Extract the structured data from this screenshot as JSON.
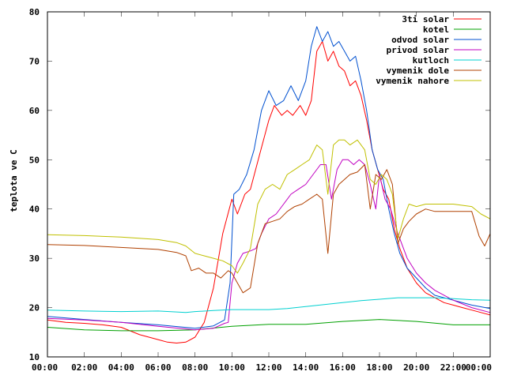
{
  "chart_data": {
    "type": "line",
    "title": "",
    "xlabel": "",
    "ylabel": "teplota ve C",
    "xlim": [
      0,
      24
    ],
    "ylim": [
      10,
      80
    ],
    "grid": false,
    "legend_position": "top-right",
    "x_ticks": [
      "00:00",
      "02:00",
      "04:00",
      "06:00",
      "08:00",
      "10:00",
      "12:00",
      "14:00",
      "16:00",
      "18:00",
      "20:00",
      "22:00",
      "00:00"
    ],
    "y_ticks": [
      "10",
      "20",
      "30",
      "40",
      "50",
      "60",
      "70",
      "80"
    ],
    "series": [
      {
        "name": "3ti solar",
        "color": "#ff0000",
        "x": [
          0,
          1,
          2,
          3,
          4,
          5,
          6,
          6.5,
          7,
          7.5,
          8,
          8.5,
          9,
          9.5,
          10,
          10.3,
          10.7,
          11,
          11.5,
          12,
          12.3,
          12.7,
          13,
          13.3,
          13.7,
          14,
          14.3,
          14.6,
          14.9,
          15.2,
          15.5,
          15.8,
          16.1,
          16.4,
          16.7,
          17,
          17.3,
          17.6,
          17.9,
          18.2,
          18.5,
          18.8,
          19.1,
          19.5,
          20,
          20.5,
          21,
          21.5,
          22,
          22.5,
          23,
          23.5,
          24
        ],
        "values": [
          17.5,
          17,
          16.8,
          16.5,
          16,
          14.5,
          13.5,
          13,
          12.8,
          13,
          14,
          17,
          24,
          35,
          42,
          39,
          43,
          44,
          51,
          58,
          61,
          59,
          60,
          59,
          61,
          59,
          62,
          72,
          74,
          70,
          72,
          69,
          68,
          65,
          66,
          63,
          58,
          52,
          48,
          44,
          42,
          36,
          32,
          28,
          25,
          23,
          22,
          21,
          20.5,
          20,
          19.5,
          19,
          18.5
        ]
      },
      {
        "name": "kotel",
        "color": "#00a000",
        "x": [
          0,
          2,
          4,
          6,
          8,
          10,
          12,
          14,
          16,
          18,
          20,
          22,
          24
        ],
        "values": [
          16,
          15.5,
          15.3,
          15.3,
          15.5,
          16.2,
          16.6,
          16.6,
          17.2,
          17.6,
          17.2,
          16.5,
          16.5
        ]
      },
      {
        "name": "odvod solar",
        "color": "#0050d0",
        "x": [
          0,
          2,
          4,
          6,
          8,
          9,
          9.6,
          9.9,
          10.1,
          10.4,
          10.8,
          11.2,
          11.6,
          12,
          12.4,
          12.8,
          13.2,
          13.6,
          14,
          14.3,
          14.6,
          14.9,
          15.2,
          15.5,
          15.8,
          16.1,
          16.4,
          16.7,
          17,
          17.3,
          17.6,
          17.9,
          18.2,
          18.5,
          18.8,
          19.1,
          19.5,
          20,
          20.5,
          21,
          22,
          23,
          24
        ],
        "values": [
          18.2,
          17.6,
          17,
          16.5,
          15.8,
          16.3,
          17.5,
          25,
          43,
          44,
          47,
          52,
          60,
          64,
          61,
          62,
          65,
          62,
          66,
          73,
          77,
          74,
          76,
          73,
          74,
          72,
          70,
          71,
          66,
          60,
          52,
          48,
          46,
          40,
          35,
          31,
          28,
          26,
          24,
          22.5,
          21.5,
          20.5,
          19.8
        ]
      },
      {
        "name": "privod solar",
        "color": "#c000c0",
        "x": [
          0,
          2,
          4,
          6,
          8,
          9,
          9.6,
          9.8,
          10,
          10.3,
          10.6,
          11,
          11.3,
          11.6,
          12,
          12.4,
          12.8,
          13.2,
          13.6,
          14,
          14.4,
          14.8,
          15.1,
          15.4,
          15.7,
          16,
          16.3,
          16.6,
          16.9,
          17.2,
          17.5,
          17.8,
          18,
          18.3,
          18.6,
          19,
          19.5,
          20,
          20.5,
          21,
          22,
          23,
          24
        ],
        "values": [
          17.8,
          17.5,
          17,
          16.2,
          15.5,
          15.8,
          16.8,
          17,
          25,
          29,
          31,
          31.5,
          32,
          35,
          38,
          39,
          41,
          43,
          44,
          45,
          47,
          49,
          49,
          42,
          48,
          50,
          50,
          49,
          50,
          49,
          45,
          40,
          47,
          42,
          40,
          35,
          30,
          27,
          25,
          23.5,
          21.5,
          20,
          19
        ]
      },
      {
        "name": "kutloch",
        "color": "#00d0d0",
        "x": [
          0,
          2,
          4,
          6,
          7.5,
          8,
          9,
          10,
          11,
          12,
          13,
          14,
          15,
          16,
          17,
          18,
          19,
          20,
          21,
          22,
          23,
          24
        ],
        "values": [
          19.5,
          19.3,
          19.2,
          19.3,
          19,
          19.2,
          19.4,
          19.6,
          19.6,
          19.6,
          19.8,
          20.2,
          20.6,
          21,
          21.4,
          21.7,
          22,
          22,
          22,
          21.8,
          21.6,
          21.5
        ]
      },
      {
        "name": "vymenik dole",
        "color": "#b04000",
        "x": [
          0,
          2,
          4,
          6,
          7,
          7.5,
          7.8,
          8.2,
          8.6,
          9,
          9.4,
          9.8,
          10,
          10.3,
          10.6,
          11,
          11.4,
          11.8,
          12.2,
          12.6,
          13,
          13.4,
          13.8,
          14.2,
          14.6,
          14.9,
          15.2,
          15.5,
          15.8,
          16.1,
          16.4,
          16.8,
          17.2,
          17.5,
          17.8,
          18.1,
          18.4,
          18.7,
          19,
          19.3,
          19.6,
          20,
          20.5,
          21,
          22,
          23,
          23.4,
          23.7,
          24
        ],
        "values": [
          32.8,
          32.6,
          32.2,
          31.8,
          31.2,
          30.5,
          27.5,
          28,
          27,
          27,
          26,
          27.5,
          27,
          25,
          23,
          24,
          33,
          37,
          37.5,
          38,
          39.5,
          40.5,
          41,
          42,
          43,
          42,
          31,
          43,
          45,
          46,
          47,
          47.5,
          49,
          40,
          47,
          46,
          48,
          45,
          33,
          36,
          37.5,
          39,
          40,
          39.5,
          39.5,
          39.5,
          34.5,
          32.5,
          35
        ]
      },
      {
        "name": "vymenik nahore",
        "color": "#c0c000",
        "x": [
          0,
          2,
          4,
          6,
          7,
          7.5,
          8,
          8.5,
          9,
          9.5,
          10,
          10.3,
          10.6,
          11,
          11.4,
          11.8,
          12.2,
          12.6,
          13,
          13.4,
          13.8,
          14.2,
          14.6,
          14.9,
          15.2,
          15.5,
          15.8,
          16.1,
          16.4,
          16.8,
          17.2,
          17.5,
          17.8,
          18.1,
          18.4,
          18.7,
          19,
          19.3,
          19.6,
          20,
          20.5,
          21,
          22,
          23,
          23.5,
          24
        ],
        "values": [
          34.8,
          34.6,
          34.3,
          33.8,
          33.2,
          32.5,
          31,
          30.5,
          30,
          29.5,
          28.5,
          27,
          29,
          32,
          41,
          44,
          45,
          44,
          47,
          48,
          49,
          50,
          53,
          52,
          43,
          53,
          54,
          54,
          53,
          54,
          52,
          46,
          45,
          47,
          46,
          43,
          34,
          38,
          41,
          40.5,
          41,
          41,
          41,
          40.5,
          39,
          38
        ]
      }
    ]
  }
}
